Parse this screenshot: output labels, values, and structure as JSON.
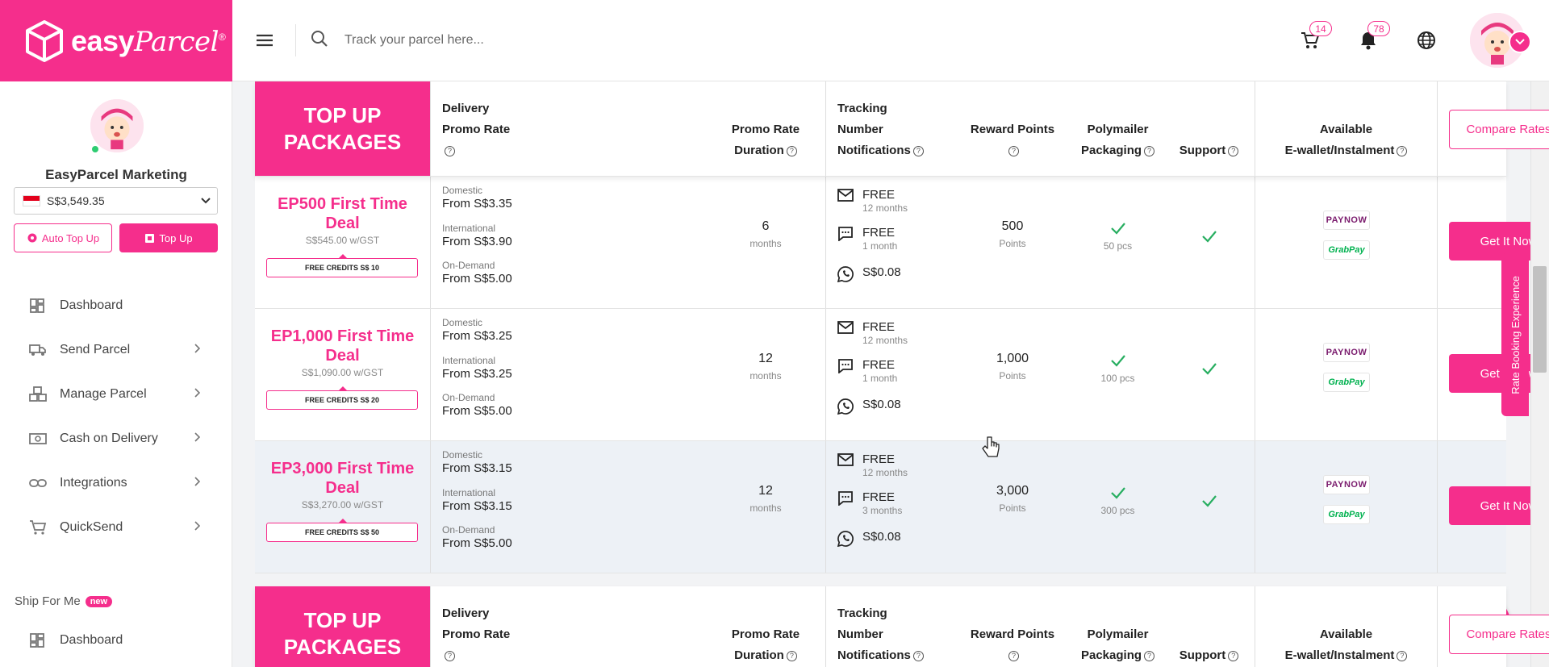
{
  "brand": {
    "logo_word": "easy",
    "logo_script": "Parcel",
    "logo_mark": "®"
  },
  "header": {
    "search_placeholder": "Track your parcel here...",
    "cart_count": "14",
    "notification_count": "78"
  },
  "sidebar": {
    "account_name": "EasyParcel Marketing",
    "balance": "S$3,549.35",
    "auto_topup_label": "Auto Top Up",
    "topup_label": "Top Up",
    "nav": [
      {
        "label": "Dashboard"
      },
      {
        "label": "Send Parcel"
      },
      {
        "label": "Manage Parcel"
      },
      {
        "label": "Cash on Delivery"
      },
      {
        "label": "Integrations"
      },
      {
        "label": "QuickSend"
      }
    ],
    "ship_for_me_label": "Ship For Me",
    "new_badge": "new",
    "nav2": [
      {
        "label": "Dashboard"
      }
    ]
  },
  "table": {
    "brand_line1": "TOP UP",
    "brand_line2": "PACKAGES",
    "headers": {
      "delivery_l1": "Delivery",
      "delivery_l2": "Promo Rate",
      "duration_l1": "Promo Rate",
      "duration_l2": "Duration",
      "tracking_l1": "Tracking",
      "tracking_l2": "Number",
      "tracking_l3": "Notifications",
      "reward": "Reward Points",
      "poly_l1": "Polymailer",
      "poly_l2": "Packaging",
      "support": "Support",
      "ewallet_l1": "Available",
      "ewallet_l2": "E-wallet/Instalment"
    },
    "compare_label": "Compare Rates",
    "get_label": "Get It Now",
    "rate_labels": {
      "domestic": "Domestic",
      "international": "International",
      "on_demand": "On-Demand"
    },
    "paynow_label": "PAYNOW",
    "grabpay_label": "GrabPay",
    "packages": [
      {
        "title_l1": "EP500 First Time",
        "title_l2": "Deal",
        "price": "S$545.00 w/GST",
        "credits": "FREE CREDITS S$ 10",
        "domestic": "From S$3.35",
        "international": "From S$3.90",
        "on_demand": "From S$5.00",
        "duration": "6",
        "duration_unit": "months",
        "email": "FREE",
        "email_sub": "12 months",
        "sms": "FREE",
        "sms_sub": "1 month",
        "whatsapp": "S$0.08",
        "points": "500",
        "points_unit": "Points",
        "poly": "50 pcs"
      },
      {
        "title_l1": "EP1,000 First Time",
        "title_l2": "Deal",
        "price": "S$1,090.00 w/GST",
        "credits": "FREE CREDITS S$ 20",
        "domestic": "From S$3.25",
        "international": "From S$3.25",
        "on_demand": "From S$5.00",
        "duration": "12",
        "duration_unit": "months",
        "email": "FREE",
        "email_sub": "12 months",
        "sms": "FREE",
        "sms_sub": "1 month",
        "whatsapp": "S$0.08",
        "points": "1,000",
        "points_unit": "Points",
        "poly": "100 pcs"
      },
      {
        "title_l1": "EP3,000 First Time",
        "title_l2": "Deal",
        "price": "S$3,270.00 w/GST",
        "credits": "FREE CREDITS S$ 50",
        "domestic": "From S$3.15",
        "international": "From S$3.15",
        "on_demand": "From S$5.00",
        "duration": "12",
        "duration_unit": "months",
        "email": "FREE",
        "email_sub": "12 months",
        "sms": "FREE",
        "sms_sub": "3 months",
        "whatsapp": "S$0.08",
        "points": "3,000",
        "points_unit": "Points",
        "poly": "300 pcs"
      }
    ]
  },
  "side_tab_label": "Rate Booking Experience",
  "colors": {
    "brand_pink": "#f52e8c",
    "check_green": "#27ae60"
  }
}
